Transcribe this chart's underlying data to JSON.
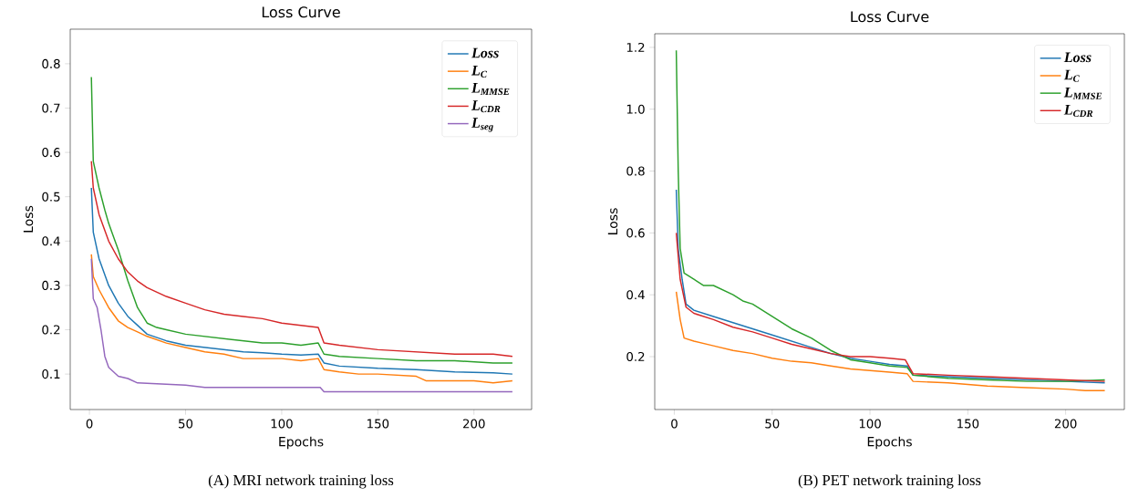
{
  "chart_data": [
    {
      "type": "line",
      "title": "Loss Curve",
      "xlabel": "Epochs",
      "ylabel": "Loss",
      "annotations": [
        "(A)  MRI network training loss"
      ],
      "legend": "top right",
      "xlim": [
        -10,
        230
      ],
      "ylim": [
        0.02,
        0.878
      ],
      "xticks": [
        0,
        50,
        100,
        150,
        200
      ],
      "yticks": [
        0.1,
        0.2,
        0.3,
        0.4,
        0.5,
        0.6,
        0.7,
        0.8
      ],
      "series": [
        {
          "name": "Loss",
          "color": "#1f77b4",
          "x": [
            1,
            2,
            5,
            10,
            15,
            20,
            25,
            30,
            40,
            50,
            60,
            70,
            80,
            90,
            100,
            110,
            119,
            122,
            130,
            150,
            170,
            190,
            210,
            220
          ],
          "values": [
            0.52,
            0.42,
            0.36,
            0.3,
            0.26,
            0.23,
            0.21,
            0.19,
            0.175,
            0.165,
            0.16,
            0.155,
            0.15,
            0.148,
            0.145,
            0.143,
            0.145,
            0.125,
            0.118,
            0.113,
            0.11,
            0.105,
            0.103,
            0.1
          ]
        },
        {
          "name": "L$_{C}$",
          "color": "#ff7f0e",
          "x": [
            1,
            2,
            5,
            10,
            15,
            20,
            25,
            30,
            40,
            50,
            60,
            70,
            80,
            90,
            100,
            110,
            119,
            122,
            130,
            140,
            150,
            170,
            175,
            200,
            210,
            220
          ],
          "values": [
            0.37,
            0.32,
            0.29,
            0.25,
            0.22,
            0.205,
            0.195,
            0.185,
            0.17,
            0.16,
            0.15,
            0.145,
            0.135,
            0.135,
            0.135,
            0.13,
            0.135,
            0.11,
            0.105,
            0.1,
            0.1,
            0.095,
            0.085,
            0.085,
            0.08,
            0.085
          ]
        },
        {
          "name": "L$_{MMSE}$",
          "color": "#2ca02c",
          "x": [
            1,
            2,
            5,
            8,
            10,
            15,
            20,
            25,
            30,
            35,
            40,
            50,
            60,
            70,
            80,
            90,
            100,
            110,
            119,
            122,
            130,
            150,
            170,
            190,
            210,
            220
          ],
          "values": [
            0.77,
            0.58,
            0.52,
            0.47,
            0.44,
            0.38,
            0.31,
            0.25,
            0.215,
            0.205,
            0.2,
            0.19,
            0.185,
            0.18,
            0.175,
            0.17,
            0.17,
            0.165,
            0.17,
            0.145,
            0.14,
            0.135,
            0.13,
            0.13,
            0.125,
            0.125
          ]
        },
        {
          "name": "L$_{CDR}$",
          "color": "#d62728",
          "x": [
            1,
            2,
            5,
            10,
            15,
            20,
            25,
            30,
            40,
            50,
            60,
            70,
            80,
            90,
            100,
            110,
            119,
            122,
            130,
            150,
            170,
            190,
            210,
            220
          ],
          "values": [
            0.58,
            0.52,
            0.46,
            0.4,
            0.36,
            0.33,
            0.31,
            0.295,
            0.275,
            0.26,
            0.245,
            0.235,
            0.23,
            0.225,
            0.215,
            0.21,
            0.205,
            0.17,
            0.165,
            0.155,
            0.15,
            0.145,
            0.145,
            0.14
          ]
        },
        {
          "name": "L$_{seg}$",
          "color": "#9467bd",
          "x": [
            1,
            2,
            4,
            6,
            8,
            10,
            15,
            20,
            25,
            50,
            60,
            120,
            122,
            220
          ],
          "values": [
            0.36,
            0.27,
            0.25,
            0.2,
            0.14,
            0.115,
            0.095,
            0.09,
            0.08,
            0.075,
            0.07,
            0.07,
            0.06,
            0.06
          ]
        }
      ]
    },
    {
      "type": "line",
      "title": "Loss Curve",
      "xlabel": "Epochs",
      "ylabel": "Loss",
      "annotations": [
        "(B)  PET network training loss"
      ],
      "legend": "top right",
      "xlim": [
        -10,
        230
      ],
      "ylim": [
        0.029,
        1.244
      ],
      "xticks": [
        0,
        50,
        100,
        150,
        200
      ],
      "yticks": [
        0.2,
        0.4,
        0.6,
        0.8,
        {
          "value": 1,
          "label": "1.0"
        },
        1.2
      ],
      "series": [
        {
          "name": "Loss",
          "color": "#1f77b4",
          "x": [
            1,
            2,
            4,
            6,
            10,
            20,
            30,
            40,
            50,
            60,
            70,
            80,
            90,
            100,
            110,
            119,
            122,
            140,
            160,
            180,
            200,
            220
          ],
          "values": [
            0.74,
            0.55,
            0.45,
            0.37,
            0.35,
            0.33,
            0.31,
            0.29,
            0.27,
            0.25,
            0.23,
            0.21,
            0.195,
            0.185,
            0.175,
            0.17,
            0.14,
            0.135,
            0.13,
            0.125,
            0.12,
            0.115
          ]
        },
        {
          "name": "L$_{C}$",
          "color": "#ff7f0e",
          "x": [
            1,
            3,
            5,
            10,
            20,
            30,
            40,
            50,
            60,
            70,
            80,
            90,
            100,
            110,
            119,
            122,
            140,
            160,
            180,
            200,
            210,
            220
          ],
          "values": [
            0.41,
            0.32,
            0.26,
            0.25,
            0.235,
            0.22,
            0.21,
            0.195,
            0.185,
            0.18,
            0.17,
            0.16,
            0.155,
            0.15,
            0.145,
            0.12,
            0.115,
            0.105,
            0.1,
            0.095,
            0.09,
            0.09
          ]
        },
        {
          "name": "L$_{MMSE}$",
          "color": "#2ca02c",
          "x": [
            1,
            2,
            3,
            5,
            10,
            15,
            20,
            30,
            35,
            40,
            50,
            60,
            70,
            80,
            90,
            100,
            110,
            119,
            122,
            140,
            160,
            180,
            200,
            220
          ],
          "values": [
            1.19,
            0.8,
            0.55,
            0.47,
            0.45,
            0.43,
            0.43,
            0.4,
            0.38,
            0.37,
            0.33,
            0.29,
            0.26,
            0.22,
            0.19,
            0.18,
            0.17,
            0.165,
            0.14,
            0.13,
            0.125,
            0.12,
            0.12,
            0.125
          ]
        },
        {
          "name": "L$_{CDR}$",
          "color": "#d62728",
          "x": [
            1,
            3,
            6,
            10,
            20,
            30,
            40,
            50,
            60,
            70,
            80,
            90,
            100,
            110,
            118,
            122,
            140,
            160,
            180,
            200,
            220
          ],
          "values": [
            0.6,
            0.45,
            0.36,
            0.34,
            0.32,
            0.295,
            0.28,
            0.26,
            0.24,
            0.225,
            0.21,
            0.2,
            0.2,
            0.195,
            0.19,
            0.145,
            0.14,
            0.135,
            0.13,
            0.125,
            0.12
          ]
        }
      ]
    }
  ]
}
